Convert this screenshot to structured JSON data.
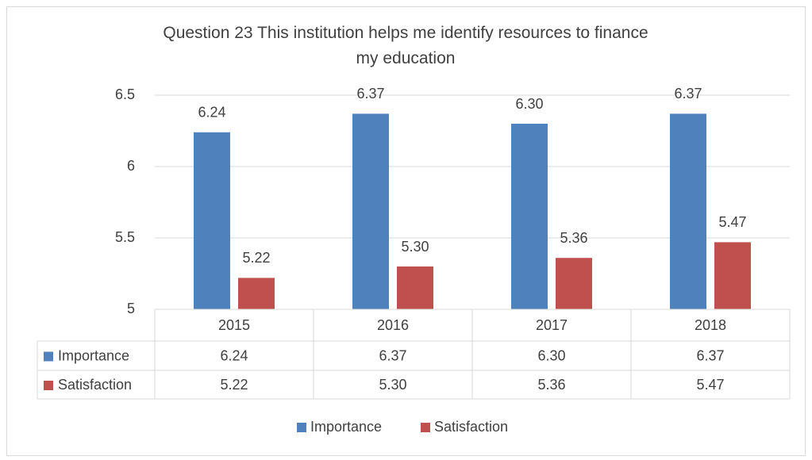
{
  "chart_data": {
    "type": "bar",
    "title": "Question 23  This institution helps me identify resources to finance my education",
    "categories": [
      "2015",
      "2016",
      "2017",
      "2018"
    ],
    "series": [
      {
        "name": "Importance",
        "color": "#4f81bd",
        "values": [
          6.24,
          6.37,
          6.3,
          6.37
        ],
        "value_labels": [
          "6.24",
          "6.37",
          "6.30",
          "6.37"
        ]
      },
      {
        "name": "Satisfaction",
        "color": "#c0504d",
        "values": [
          5.22,
          5.3,
          5.36,
          5.47
        ],
        "value_labels": [
          "5.22",
          "5.30",
          "5.36",
          "5.47"
        ]
      }
    ],
    "ylim": [
      5,
      6.5
    ],
    "yticks": [
      5,
      5.5,
      6,
      6.5
    ],
    "grid": true,
    "legend": "bottom",
    "data_table": true
  }
}
